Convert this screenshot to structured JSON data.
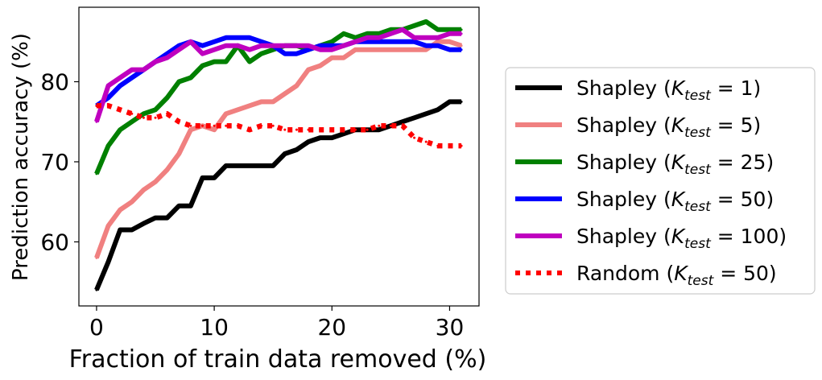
{
  "chart_data": {
    "type": "line",
    "title": "",
    "xlabel": "Fraction of train data removed (%)",
    "ylabel": "Prediction accuracy (%)",
    "xlim": [
      -1.5,
      32.5
    ],
    "ylim": [
      52.0,
      89.3
    ],
    "xticks": [
      0,
      10,
      20,
      30
    ],
    "yticks": [
      60,
      70,
      80
    ],
    "grid": false,
    "legend_position": "right, outside plot area",
    "x": [
      0,
      1,
      2,
      3,
      4,
      5,
      6,
      7,
      8,
      9,
      10,
      11,
      12,
      13,
      14,
      15,
      16,
      17,
      18,
      19,
      20,
      21,
      22,
      23,
      24,
      25,
      26,
      27,
      28,
      29,
      30,
      31
    ],
    "series": [
      {
        "name": "Shapley",
        "k_test": "1",
        "color": "#000000",
        "style": "solid",
        "values": [
          54.0,
          57.5,
          61.5,
          61.5,
          62.3,
          63.0,
          63.0,
          64.5,
          64.5,
          68.0,
          68.0,
          69.5,
          69.5,
          69.5,
          69.5,
          69.5,
          71.0,
          71.5,
          72.5,
          73.0,
          73.0,
          73.5,
          74.0,
          74.0,
          74.0,
          74.5,
          75.0,
          75.5,
          76.0,
          76.5,
          77.5,
          77.5
        ]
      },
      {
        "name": "Shapley",
        "k_test": "5",
        "color": "#f08080",
        "style": "solid",
        "values": [
          58.0,
          62.0,
          64.0,
          65.0,
          66.5,
          67.5,
          69.0,
          71.0,
          74.0,
          74.5,
          74.0,
          76.0,
          76.5,
          77.0,
          77.5,
          77.5,
          78.5,
          79.5,
          81.5,
          82.0,
          83.0,
          83.0,
          84.0,
          84.0,
          84.0,
          84.0,
          84.0,
          84.0,
          84.0,
          85.0,
          85.0,
          84.5
        ]
      },
      {
        "name": "Shapley",
        "k_test": "25",
        "color": "#008000",
        "style": "solid",
        "values": [
          68.5,
          72.0,
          74.0,
          75.0,
          76.0,
          76.5,
          78.0,
          80.0,
          80.5,
          82.0,
          82.5,
          82.5,
          84.5,
          82.5,
          83.5,
          84.0,
          84.5,
          84.5,
          84.0,
          84.5,
          85.0,
          86.0,
          85.5,
          86.0,
          86.0,
          86.5,
          86.5,
          87.0,
          87.5,
          86.5,
          86.5,
          86.5
        ]
      },
      {
        "name": "Shapley",
        "k_test": "50",
        "color": "#0000ff",
        "style": "solid",
        "values": [
          77.0,
          78.0,
          79.5,
          80.5,
          81.5,
          82.5,
          83.5,
          84.5,
          85.0,
          84.5,
          85.0,
          85.5,
          85.5,
          85.5,
          85.0,
          84.5,
          83.5,
          83.5,
          84.0,
          84.5,
          84.5,
          84.5,
          85.0,
          85.0,
          85.0,
          85.0,
          85.0,
          85.0,
          84.5,
          84.5,
          84.0,
          84.0
        ]
      },
      {
        "name": "Shapley",
        "k_test": "100",
        "color": "#bf00bf",
        "style": "solid",
        "values": [
          75.0,
          79.5,
          80.5,
          81.5,
          81.5,
          82.5,
          83.0,
          84.0,
          85.0,
          83.5,
          84.0,
          84.5,
          84.5,
          84.0,
          84.5,
          84.5,
          84.5,
          84.5,
          84.5,
          84.0,
          84.0,
          84.5,
          85.0,
          85.5,
          85.5,
          86.0,
          86.5,
          85.5,
          85.5,
          85.5,
          86.0,
          86.0
        ]
      },
      {
        "name": "Random",
        "k_test": "50",
        "color": "#ff0000",
        "style": "dotted",
        "values": [
          77.0,
          77.0,
          76.5,
          76.0,
          75.5,
          75.5,
          76.0,
          75.0,
          74.5,
          74.5,
          74.5,
          74.5,
          74.5,
          74.0,
          74.5,
          74.5,
          74.0,
          74.0,
          74.0,
          74.0,
          74.0,
          74.0,
          74.0,
          74.0,
          74.5,
          74.5,
          74.5,
          73.0,
          72.5,
          72.0,
          72.0,
          72.0
        ]
      }
    ]
  }
}
